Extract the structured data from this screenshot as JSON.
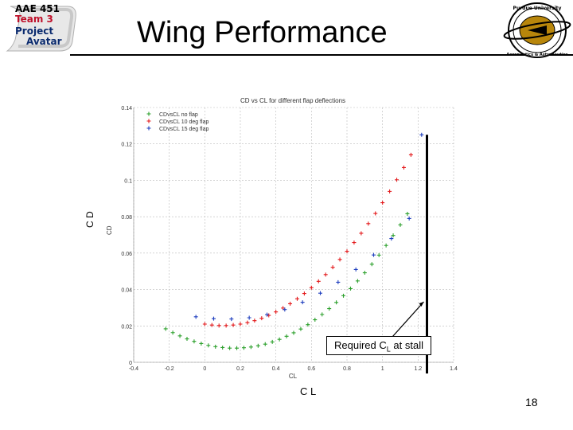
{
  "badge": {
    "lines": [
      "AAE 451",
      "Team 3",
      "Project",
      "Avatar"
    ],
    "colors": [
      "#0a2a6e",
      "#c0102a",
      "#0a2a6e",
      "#0a2a6e"
    ]
  },
  "slide": {
    "title": "Wing Performance",
    "page_number": "18"
  },
  "seal": {
    "text_top": "Purdue University",
    "text_bottom": "Aeronautics & Astronautics",
    "color": "#b8860b"
  },
  "annotation": {
    "text_prefix": "Required C",
    "text_sub": "L",
    "text_suffix": " at stall"
  },
  "axis_labels": {
    "outer_x": "C L",
    "outer_y": "C D"
  },
  "chart_data": {
    "type": "scatter",
    "title": "CD vs CL for different flap deflections",
    "xlabel": "CL",
    "ylabel": "CD",
    "xlim": [
      -0.4,
      1.4
    ],
    "ylim": [
      0,
      0.14
    ],
    "xticks": [
      -0.4,
      -0.2,
      0,
      0.2,
      0.4,
      0.6,
      0.8,
      1,
      1.2,
      1.4
    ],
    "xtick_labels": [
      "-0.4",
      "-0.2",
      "0",
      "0.2",
      "0.4",
      "0.6",
      "0.8",
      "1",
      "1.2",
      "1.4"
    ],
    "yticks": [
      0,
      0.02,
      0.04,
      0.06,
      0.08,
      0.1,
      0.12,
      0.14
    ],
    "ytick_labels": [
      "0",
      "0.02",
      "0.04",
      "0.06",
      "0.08",
      "0.1",
      "0.12",
      "0.14"
    ],
    "grid": true,
    "legend_position": "top-left",
    "reference_line_x": 1.25,
    "series": [
      {
        "name": "CDvsCL no flap",
        "color": "#2ca02c",
        "marker": "+",
        "x": [
          -0.22,
          -0.18,
          -0.14,
          -0.1,
          -0.06,
          -0.02,
          0.02,
          0.06,
          0.1,
          0.14,
          0.18,
          0.22,
          0.26,
          0.3,
          0.34,
          0.38,
          0.42,
          0.46,
          0.5,
          0.54,
          0.58,
          0.62,
          0.66,
          0.7,
          0.74,
          0.78,
          0.82,
          0.86,
          0.9,
          0.94,
          0.98,
          1.02,
          1.06,
          1.1,
          1.14
        ],
        "y": [
          0.0184,
          0.0163,
          0.0145,
          0.0129,
          0.0115,
          0.0103,
          0.0093,
          0.0086,
          0.0081,
          0.0078,
          0.0078,
          0.008,
          0.0084,
          0.0091,
          0.01,
          0.0112,
          0.0126,
          0.0143,
          0.0162,
          0.0183,
          0.0207,
          0.0234,
          0.0263,
          0.0295,
          0.0329,
          0.0366,
          0.0405,
          0.0447,
          0.0492,
          0.0539,
          0.0589,
          0.0642,
          0.0697,
          0.0755,
          0.0816
        ]
      },
      {
        "name": "CDvsCL 10 deg flap",
        "color": "#e41a1c",
        "marker": "+",
        "x": [
          0.0,
          0.04,
          0.08,
          0.12,
          0.16,
          0.2,
          0.24,
          0.28,
          0.32,
          0.36,
          0.4,
          0.44,
          0.48,
          0.52,
          0.56,
          0.6,
          0.64,
          0.68,
          0.72,
          0.76,
          0.8,
          0.84,
          0.88,
          0.92,
          0.96,
          1.0,
          1.04,
          1.08,
          1.12,
          1.16
        ],
        "y": [
          0.021,
          0.0205,
          0.0202,
          0.0202,
          0.0205,
          0.021,
          0.0218,
          0.0229,
          0.0242,
          0.0258,
          0.0277,
          0.0298,
          0.0322,
          0.0349,
          0.0378,
          0.041,
          0.0445,
          0.0482,
          0.0522,
          0.0565,
          0.061,
          0.0658,
          0.0709,
          0.0762,
          0.0818,
          0.0877,
          0.0939,
          0.1003,
          0.107,
          0.114
        ]
      },
      {
        "name": "CDvsCL 15 deg flap",
        "color": "#1f3fbf",
        "marker": "+",
        "x": [
          -0.05,
          0.05,
          0.15,
          0.25,
          0.35,
          0.45,
          0.55,
          0.65,
          0.75,
          0.85,
          0.95,
          1.05,
          1.15,
          1.22
        ],
        "y": [
          0.025,
          0.024,
          0.0238,
          0.0245,
          0.0262,
          0.029,
          0.033,
          0.038,
          0.044,
          0.051,
          0.059,
          0.068,
          0.079,
          0.125
        ]
      }
    ]
  }
}
